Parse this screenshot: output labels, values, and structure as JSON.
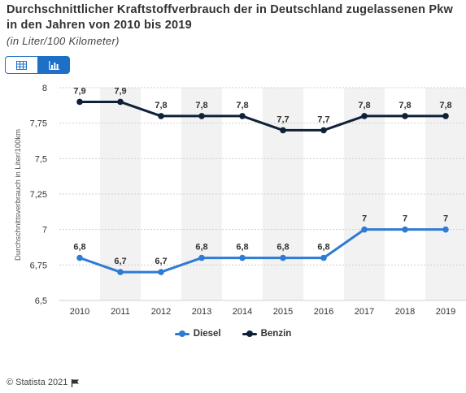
{
  "title": "Durchschnittlicher Kraftstoffverbrauch der in Deutschland zugelassenen Pkw in den Jahren von 2010 bis 2019",
  "subtitle": "(in Liter/100 Kilometer)",
  "toggle": {
    "table_icon": "table-icon",
    "chart_icon": "bar-chart-icon",
    "active": "chart"
  },
  "footer": {
    "copyright": "© Statista 2021",
    "flag_icon": "flag-icon"
  },
  "colors": {
    "diesel": "#2f7bd4",
    "benzin": "#0f2138",
    "band": "#f2f2f2",
    "grid": "#cfcfcf"
  },
  "chart_data": {
    "type": "line",
    "categories": [
      "2010",
      "2011",
      "2012",
      "2013",
      "2014",
      "2015",
      "2016",
      "2017",
      "2018",
      "2019"
    ],
    "series": [
      {
        "name": "Diesel",
        "values": [
          6.8,
          6.7,
          6.7,
          6.8,
          6.8,
          6.8,
          6.8,
          7.0,
          7.0,
          7.0
        ],
        "labels": [
          "6,8",
          "6,7",
          "6,7",
          "6,8",
          "6,8",
          "6,8",
          "6,8",
          "7",
          "7",
          "7"
        ]
      },
      {
        "name": "Benzin",
        "values": [
          7.9,
          7.9,
          7.8,
          7.8,
          7.8,
          7.7,
          7.7,
          7.8,
          7.8,
          7.8
        ],
        "labels": [
          "7,9",
          "7,9",
          "7,8",
          "7,8",
          "7,8",
          "7,7",
          "7,7",
          "7,8",
          "7,8",
          "7,8"
        ]
      }
    ],
    "ylabel": "Durchschnittsverbrauch in Liter/100km",
    "xlabel": "",
    "ylim": [
      6.5,
      8
    ],
    "yticks": [
      6.5,
      6.75,
      7,
      7.25,
      7.5,
      7.75,
      8
    ],
    "ytick_labels": [
      "6,5",
      "6,75",
      "7",
      "7,25",
      "7,5",
      "7,75",
      "8"
    ],
    "grid": true,
    "legend": "bottom-center"
  }
}
